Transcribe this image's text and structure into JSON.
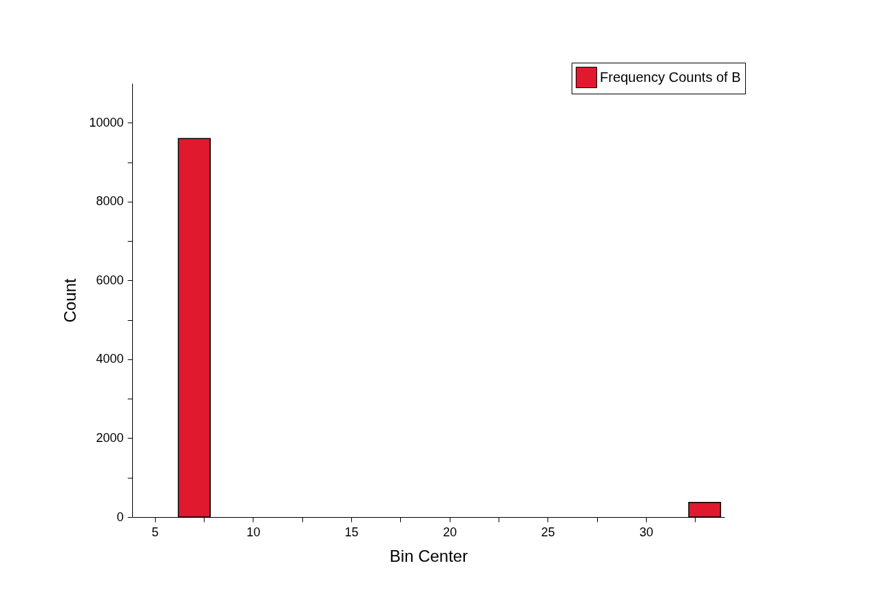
{
  "chart_data": {
    "type": "histogram",
    "xlabel": "Bin Center",
    "ylabel": "Count",
    "bins": [
      6.2,
      7.82,
      9.45,
      11.07,
      12.69,
      14.32,
      15.94,
      17.56,
      19.19,
      20.81,
      22.43,
      24.06,
      25.68,
      27.3,
      28.93,
      30.55,
      32.18,
      33.8
    ],
    "series": [
      {
        "name": "Frequency Counts of B",
        "color": "#e0192f",
        "values": [
          9600,
          0,
          0,
          0,
          0,
          0,
          0,
          0,
          0,
          0,
          0,
          0,
          0,
          0,
          0,
          0,
          370
        ]
      }
    ],
    "xlim": [
      3.85,
      34
    ],
    "xticks": [
      5,
      {
        "value": 7.5,
        "label": null
      },
      10,
      {
        "value": 12.5,
        "label": null
      },
      15,
      {
        "value": 17.5,
        "label": null
      },
      20,
      {
        "value": 22.5,
        "label": null
      },
      25,
      {
        "value": 27.5,
        "label": null
      },
      30,
      {
        "value": 32.5,
        "label": null
      }
    ],
    "ylim": [
      0,
      11000
    ],
    "yticks": [
      0,
      {
        "value": 1000,
        "label": null
      },
      2000,
      {
        "value": 3000,
        "label": null
      },
      4000,
      {
        "value": 5000,
        "label": null
      },
      6000,
      {
        "value": 7000,
        "label": null
      },
      8000,
      {
        "value": 9000,
        "label": null
      },
      10000
    ],
    "grid": false,
    "legend": "top right"
  }
}
